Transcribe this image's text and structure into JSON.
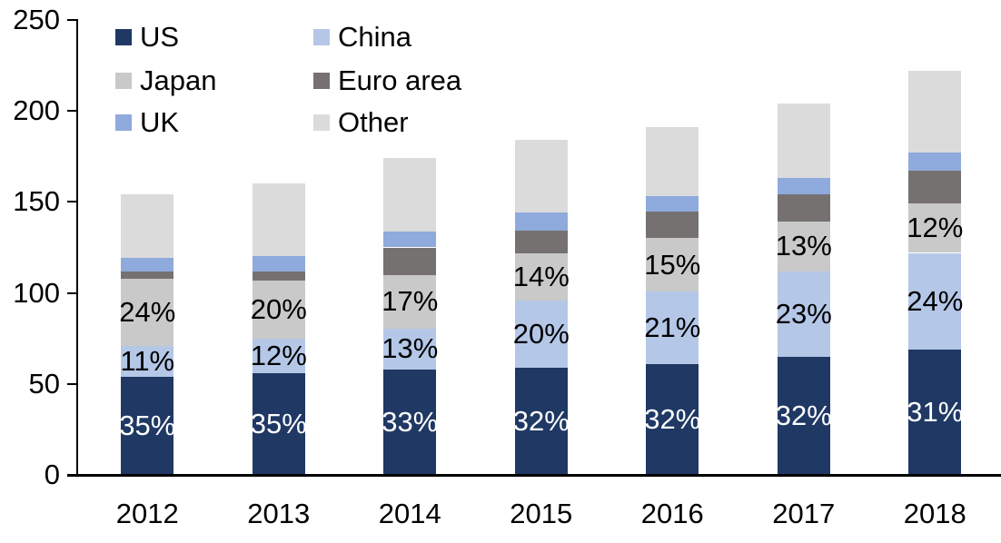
{
  "chart_data": {
    "type": "bar",
    "subtype": "stacked",
    "title": "",
    "categories": [
      "2012",
      "2013",
      "2014",
      "2015",
      "2016",
      "2017",
      "2018"
    ],
    "series": [
      {
        "name": "US",
        "color": "#1F3864",
        "values": [
          54,
          56,
          58,
          59,
          61,
          65,
          69
        ],
        "pct_labels": [
          "35%",
          "35%",
          "33%",
          "32%",
          "32%",
          "32%",
          "31%"
        ],
        "label_color": "#FFFFFF"
      },
      {
        "name": "China",
        "color": "#B4C7E7",
        "values": [
          17,
          19,
          22.5,
          37,
          40,
          47,
          53
        ],
        "pct_labels": [
          "11%",
          "12%",
          "13%",
          "20%",
          "21%",
          "23%",
          "24%"
        ],
        "label_color": "#000000"
      },
      {
        "name": "Japan",
        "color": "#C9C9C9",
        "values": [
          37,
          32,
          29.5,
          26,
          29,
          27,
          27
        ],
        "pct_labels": [
          "24%",
          "20%",
          "17%",
          "14%",
          "15%",
          "13%",
          "12%"
        ],
        "label_color": "#000000"
      },
      {
        "name": "Euro area",
        "color": "#767171",
        "values": [
          4,
          5,
          15,
          12,
          14.5,
          15,
          18
        ],
        "pct_labels": null,
        "label_color": "#000000"
      },
      {
        "name": "UK",
        "color": "#8FAADC",
        "values": [
          7.5,
          8.5,
          8.5,
          10,
          8.5,
          9,
          10
        ],
        "pct_labels": null,
        "label_color": "#000000"
      },
      {
        "name": "Other",
        "color": "#DBDBDB",
        "values": [
          34.5,
          39.5,
          40.5,
          40,
          38,
          41,
          45
        ],
        "pct_labels": null,
        "label_color": "#000000"
      }
    ],
    "totals_approx": [
      154,
      160.5,
      174,
      184,
      191,
      204,
      222
    ],
    "y_axis": {
      "min": 0,
      "max": 250,
      "tick_step": 50,
      "tick_labels": [
        "0",
        "50",
        "100",
        "150",
        "200",
        "250"
      ]
    },
    "xlabel": "",
    "ylabel": "",
    "grid": false,
    "legend_position": "top-left-inside",
    "legend_columns": 2,
    "legend_order_row_major": [
      "US",
      "China",
      "Japan",
      "Euro area",
      "UK",
      "Other"
    ],
    "axis_color": "#000000",
    "background_color": "#FFFFFF"
  }
}
